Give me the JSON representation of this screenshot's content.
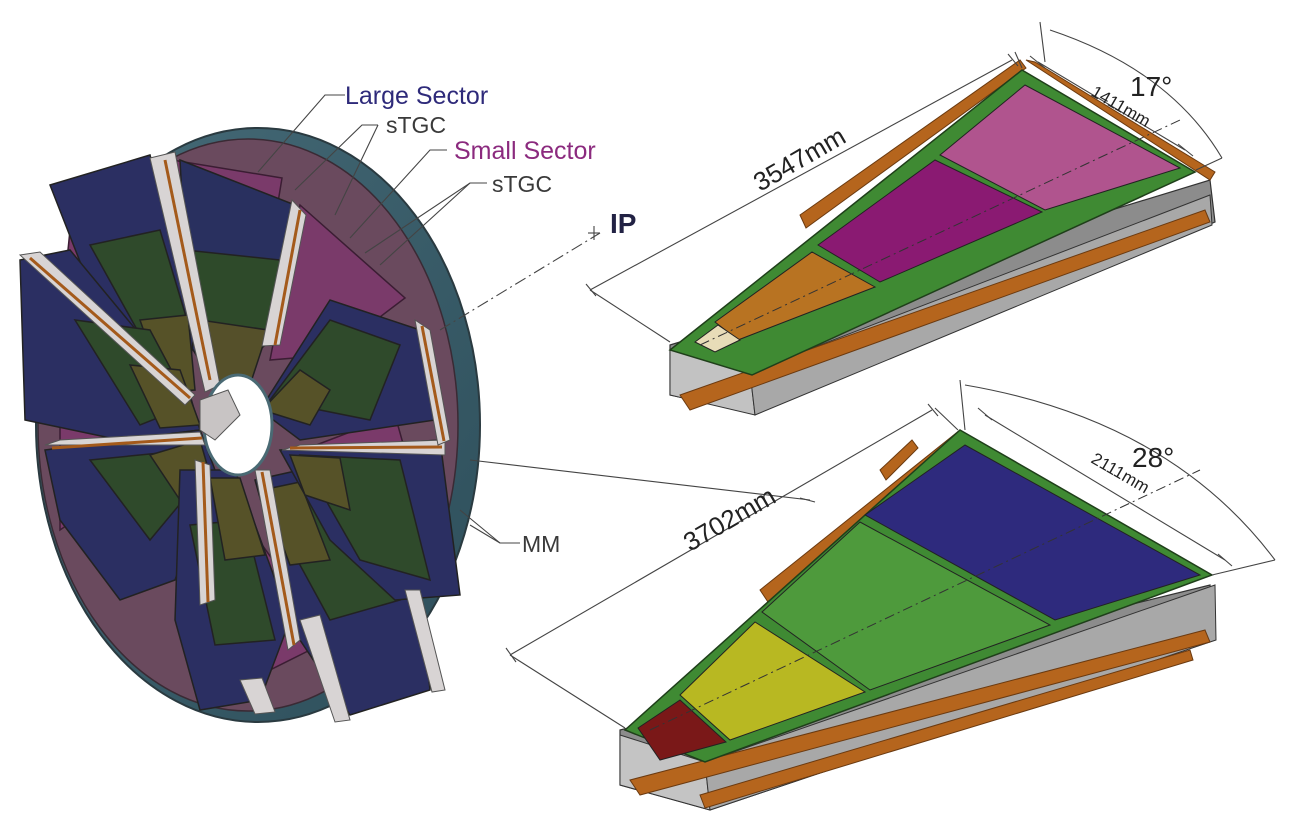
{
  "labels": {
    "large_sector": "Large Sector",
    "stgc_upper": "sTGC",
    "small_sector": "Small Sector",
    "stgc_lower": "sTGC",
    "ip": "IP",
    "mm": "MM"
  },
  "small_sector_dims": {
    "length": "3547mm",
    "width": "1411mm",
    "angle": "17°"
  },
  "large_sector_dims": {
    "length": "3702mm",
    "width": "2111mm",
    "angle": "28°"
  },
  "colors": {
    "large_sector_label": "#2e2a7a",
    "small_sector_label": "#8b2a7e",
    "dark_text": "#222233",
    "large_chamber_blue": "#2e2a7d",
    "frame_green": "#3f8a33",
    "chamber_green": "#4e9a3c",
    "chamber_yellow": "#b8b822",
    "chamber_darkred": "#7a1818",
    "small_pink": "#b0548e",
    "small_magenta": "#8a1a72",
    "small_orange": "#b87322",
    "spacer_gray": "#b0b0b0",
    "copper": "#b5651d"
  }
}
